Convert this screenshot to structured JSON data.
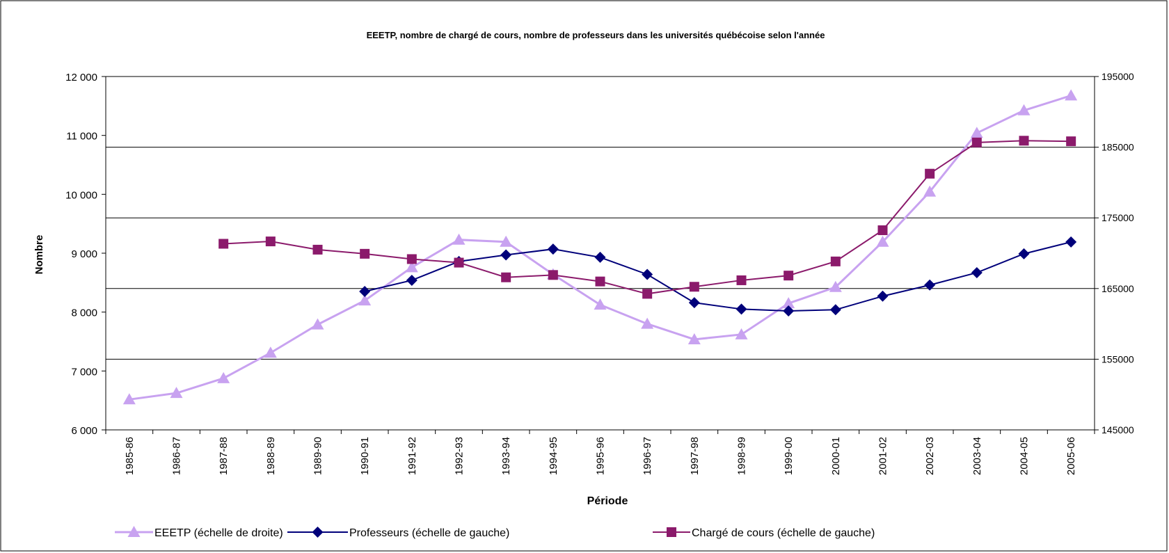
{
  "chart_data": {
    "type": "line",
    "title": "EEETP, nombre de chargé de cours, nombre de professeurs dans les universités québécoise selon l'année",
    "xlabel": "Période",
    "ylabel": "Nombre",
    "y2label": "",
    "categories": [
      "1985-86",
      "1986-87",
      "1987-88",
      "1988-89",
      "1989-90",
      "1990-91",
      "1991-92",
      "1992-93",
      "1993-94",
      "1994-95",
      "1995-96",
      "1996-97",
      "1997-98",
      "1998-99",
      "1999-00",
      "2000-01",
      "2001-02",
      "2002-03",
      "2003-04",
      "2004-05",
      "2005-06"
    ],
    "ylim": [
      6000,
      12000
    ],
    "y_ticks": [
      6000,
      7000,
      8000,
      9000,
      10000,
      11000,
      12000
    ],
    "y_tick_labels": [
      "6 000",
      "7 000",
      "8 000",
      "9 000",
      "10 000",
      "11 000",
      "12 000"
    ],
    "y2lim": [
      145000,
      195000
    ],
    "y2_ticks": [
      145000,
      155000,
      165000,
      175000,
      185000,
      195000
    ],
    "y2_tick_labels": [
      "145000",
      "155000",
      "165000",
      "175000",
      "185000",
      "195000"
    ],
    "grid": "horizontal lines at right-axis ticks",
    "legend_position": "bottom",
    "series": [
      {
        "name": "EEETP (échelle de droite)",
        "axis": "right",
        "marker": "triangle",
        "color": "#c8a2f0",
        "values": [
          149300,
          150200,
          152300,
          155900,
          159900,
          163300,
          168000,
          171900,
          171600,
          167000,
          162700,
          160000,
          157800,
          158500,
          162900,
          165200,
          171600,
          178700,
          187000,
          190200,
          192300
        ]
      },
      {
        "name": "Professeurs (échelle de gauche)",
        "axis": "left",
        "marker": "diamond",
        "color": "#00007a",
        "values": [
          null,
          null,
          null,
          null,
          null,
          8350,
          8540,
          8860,
          8970,
          9070,
          8930,
          8640,
          8160,
          8050,
          8020,
          8040,
          8270,
          8460,
          8670,
          8990,
          9190
        ]
      },
      {
        "name": "Chargé de cours (échelle de gauche)",
        "axis": "left",
        "marker": "square",
        "color": "#8b1a6b",
        "values": [
          null,
          null,
          9160,
          9200,
          9060,
          8990,
          8900,
          8840,
          8590,
          8630,
          8520,
          8310,
          8430,
          8540,
          8620,
          8860,
          9390,
          10350,
          10880,
          10910,
          10900
        ]
      }
    ]
  }
}
